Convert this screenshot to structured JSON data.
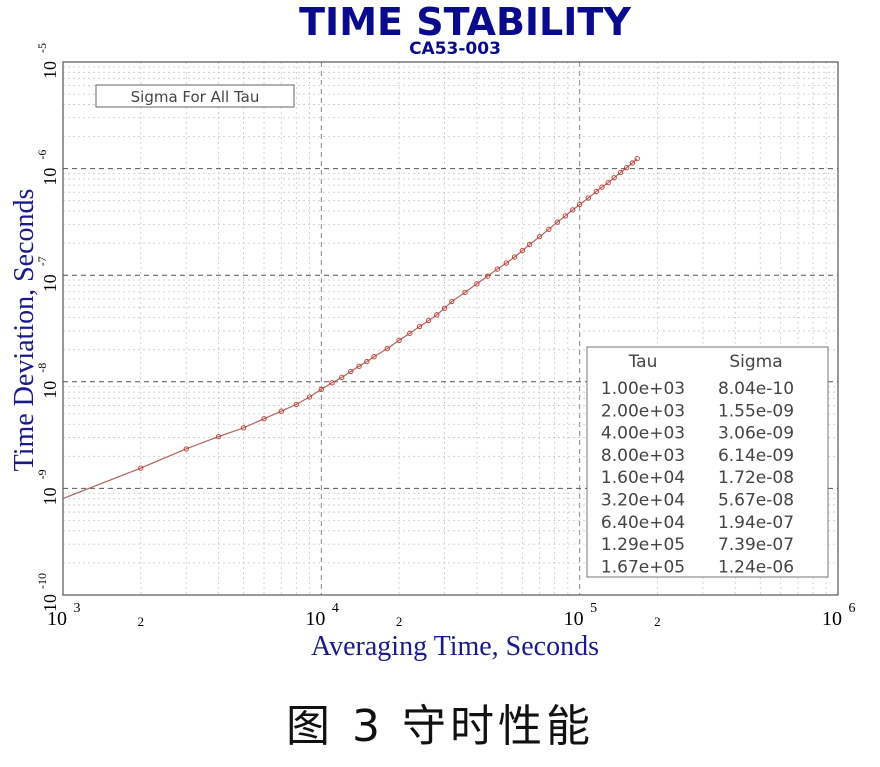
{
  "caption": "图 3 守时性能",
  "chart_data": {
    "type": "scatter",
    "title": "TIME STABILITY",
    "subtitle": "CA53-003",
    "xlabel": "Averaging Time, Seconds",
    "ylabel": "Time Deviation, Seconds",
    "x_scale": "log",
    "y_scale": "log",
    "xlim": [
      1000,
      1000000
    ],
    "ylim": [
      1e-10,
      1e-05
    ],
    "grid": true,
    "x_ticks": [
      {
        "base": "10",
        "exp": "3",
        "value": 1000
      },
      {
        "label": "2",
        "value": 2000
      },
      {
        "base": "10",
        "exp": "4",
        "value": 10000
      },
      {
        "label": "2",
        "value": 20000
      },
      {
        "base": "10",
        "exp": "5",
        "value": 100000
      },
      {
        "label": "2",
        "value": 200000
      },
      {
        "base": "10",
        "exp": "6",
        "value": 1000000
      }
    ],
    "y_ticks": [
      {
        "base": "10",
        "exp": "-10",
        "value": 1e-10
      },
      {
        "base": "10",
        "exp": "-9",
        "value": 1e-09
      },
      {
        "base": "10",
        "exp": "-8",
        "value": 1e-08
      },
      {
        "base": "10",
        "exp": "-7",
        "value": 1e-07
      },
      {
        "base": "10",
        "exp": "-6",
        "value": 1e-06
      },
      {
        "base": "10",
        "exp": "-5",
        "value": 1e-05
      }
    ],
    "legend_box": "Sigma For All Tau",
    "table": {
      "headers": [
        "Tau",
        "Sigma"
      ],
      "rows": [
        [
          "1.00e+03",
          "8.04e-10"
        ],
        [
          "2.00e+03",
          "1.55e-09"
        ],
        [
          "4.00e+03",
          "3.06e-09"
        ],
        [
          "8.00e+03",
          "6.14e-09"
        ],
        [
          "1.60e+04",
          "1.72e-08"
        ],
        [
          "3.20e+04",
          "5.67e-08"
        ],
        [
          "6.40e+04",
          "1.94e-07"
        ],
        [
          "1.29e+05",
          "7.39e-07"
        ],
        [
          "1.67e+05",
          "1.24e-06"
        ]
      ]
    },
    "series": [
      {
        "points": [
          [
            1000,
            8.04e-10
          ],
          [
            2000,
            1.55e-09
          ],
          [
            3000,
            2.35e-09
          ],
          [
            4000,
            3.06e-09
          ],
          [
            5000,
            3.7e-09
          ],
          [
            6000,
            4.5e-09
          ],
          [
            7000,
            5.3e-09
          ],
          [
            8000,
            6.14e-09
          ],
          [
            9000,
            7.2e-09
          ],
          [
            10000,
            8.5e-09
          ],
          [
            11000,
            9.8e-09
          ],
          [
            12000,
            1.1e-08
          ],
          [
            13000,
            1.25e-08
          ],
          [
            14000,
            1.4e-08
          ],
          [
            15000,
            1.55e-08
          ],
          [
            16000,
            1.72e-08
          ],
          [
            18000,
            2.05e-08
          ],
          [
            20000,
            2.45e-08
          ],
          [
            22000,
            2.85e-08
          ],
          [
            24000,
            3.3e-08
          ],
          [
            26000,
            3.75e-08
          ],
          [
            28000,
            4.25e-08
          ],
          [
            30000,
            4.9e-08
          ],
          [
            32000,
            5.67e-08
          ],
          [
            36000,
            6.9e-08
          ],
          [
            40000,
            8.3e-08
          ],
          [
            44000,
            9.8e-08
          ],
          [
            48000,
            1.14e-07
          ],
          [
            52000,
            1.3e-07
          ],
          [
            56000,
            1.48e-07
          ],
          [
            60000,
            1.7e-07
          ],
          [
            64000,
            1.94e-07
          ],
          [
            70000,
            2.3e-07
          ],
          [
            76000,
            2.7e-07
          ],
          [
            82000,
            3.15e-07
          ],
          [
            88000,
            3.6e-07
          ],
          [
            94000,
            4.1e-07
          ],
          [
            100000,
            4.6e-07
          ],
          [
            108000,
            5.3e-07
          ],
          [
            116000,
            6.1e-07
          ],
          [
            122000,
            6.7e-07
          ],
          [
            129000,
            7.39e-07
          ],
          [
            136000,
            8.2e-07
          ],
          [
            144000,
            9.2e-07
          ],
          [
            152000,
            1.02e-06
          ],
          [
            160000,
            1.13e-06
          ],
          [
            167000,
            1.24e-06
          ]
        ]
      }
    ]
  }
}
